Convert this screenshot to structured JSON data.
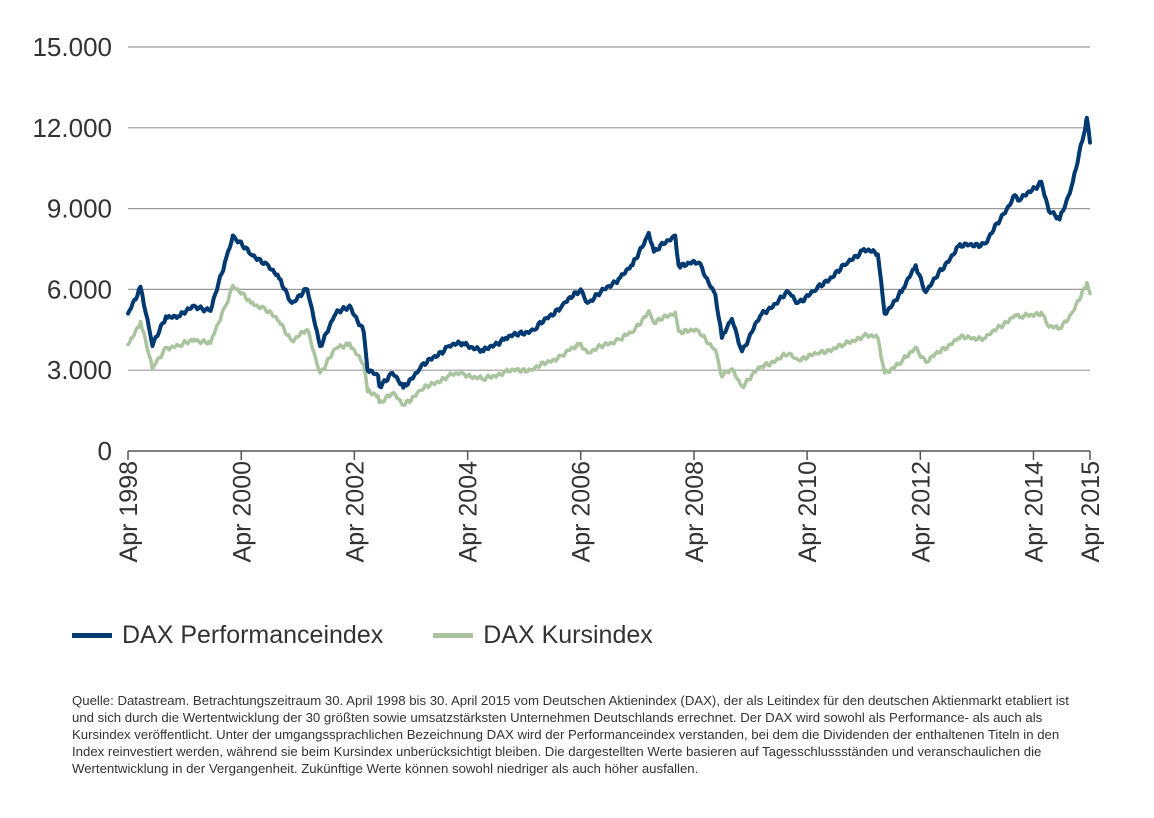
{
  "chart_data": {
    "type": "line",
    "title": "",
    "xlabel": "",
    "ylabel": "",
    "ylim": [
      0,
      15000
    ],
    "yticks": [
      0,
      3000,
      6000,
      9000,
      12000,
      15000
    ],
    "ytick_labels": [
      "0",
      "3.000",
      "6.000",
      "9.000",
      "12.000",
      "15.000"
    ],
    "xticks": [
      "1998-04-30",
      "2000-04-30",
      "2002-04-30",
      "2004-04-30",
      "2006-04-30",
      "2008-04-30",
      "2010-04-30",
      "2012-04-30",
      "2014-04-30",
      "2015-04-30"
    ],
    "xtick_labels": [
      "Apr 1998",
      "Apr 2000",
      "Apr 2002",
      "Apr 2004",
      "Apr 2006",
      "Apr 2008",
      "Apr 2010",
      "Apr 2012",
      "Apr 2014",
      "Apr 2015"
    ],
    "xlim": [
      "1998-04-30",
      "2015-04-30"
    ],
    "grid": true,
    "legend_position": "bottom-left",
    "series": [
      {
        "name": "DAX Performanceindex",
        "color": "#003a70",
        "points": [
          [
            "1998-04-30",
            5100
          ],
          [
            "1998-07-20",
            6100
          ],
          [
            "1998-10-05",
            3900
          ],
          [
            "1998-12-31",
            5000
          ],
          [
            "1999-03-31",
            5000
          ],
          [
            "1999-06-30",
            5400
          ],
          [
            "1999-10-15",
            5200
          ],
          [
            "2000-01-15",
            7000
          ],
          [
            "2000-03-07",
            8000
          ],
          [
            "2000-06-30",
            7300
          ],
          [
            "2000-09-30",
            7000
          ],
          [
            "2000-12-31",
            6400
          ],
          [
            "2001-03-22",
            5500
          ],
          [
            "2001-06-30",
            6000
          ],
          [
            "2001-09-21",
            3900
          ],
          [
            "2001-12-31",
            5100
          ],
          [
            "2002-03-31",
            5400
          ],
          [
            "2002-06-30",
            4400
          ],
          [
            "2002-07-24",
            3000
          ],
          [
            "2002-09-30",
            2800
          ],
          [
            "2002-10-09",
            2400
          ],
          [
            "2002-12-31",
            2900
          ],
          [
            "2003-03-12",
            2350
          ],
          [
            "2003-06-30",
            3100
          ],
          [
            "2003-12-31",
            3900
          ],
          [
            "2004-03-31",
            4000
          ],
          [
            "2004-08-10",
            3700
          ],
          [
            "2004-12-31",
            4200
          ],
          [
            "2005-06-30",
            4500
          ],
          [
            "2005-12-31",
            5400
          ],
          [
            "2006-04-30",
            6000
          ],
          [
            "2006-06-13",
            5500
          ],
          [
            "2006-12-31",
            6400
          ],
          [
            "2007-03-31",
            6900
          ],
          [
            "2007-07-13",
            8100
          ],
          [
            "2007-08-16",
            7400
          ],
          [
            "2007-12-31",
            8000
          ],
          [
            "2008-01-22",
            6900
          ],
          [
            "2008-05-31",
            7000
          ],
          [
            "2008-09-15",
            5800
          ],
          [
            "2008-10-27",
            4200
          ],
          [
            "2008-12-31",
            4900
          ],
          [
            "2009-03-06",
            3700
          ],
          [
            "2009-06-30",
            5000
          ],
          [
            "2009-12-31",
            5900
          ],
          [
            "2010-02-28",
            5500
          ],
          [
            "2010-06-30",
            6000
          ],
          [
            "2010-12-31",
            6900
          ],
          [
            "2011-05-02",
            7500
          ],
          [
            "2011-07-31",
            7300
          ],
          [
            "2011-09-12",
            5100
          ],
          [
            "2011-12-31",
            5900
          ],
          [
            "2012-03-31",
            6900
          ],
          [
            "2012-06-04",
            5900
          ],
          [
            "2012-12-31",
            7600
          ],
          [
            "2013-06-24",
            7700
          ],
          [
            "2013-12-31",
            9500
          ],
          [
            "2014-01-31",
            9300
          ],
          [
            "2014-06-20",
            10000
          ],
          [
            "2014-08-08",
            8900
          ],
          [
            "2014-10-16",
            8600
          ],
          [
            "2014-12-31",
            9800
          ],
          [
            "2015-03-31",
            12000
          ],
          [
            "2015-04-10",
            12370
          ],
          [
            "2015-04-30",
            11450
          ]
        ]
      },
      {
        "name": "DAX Kursindex",
        "color": "#a9c49e",
        "points": [
          [
            "1998-04-30",
            3950
          ],
          [
            "1998-07-20",
            4800
          ],
          [
            "1998-10-05",
            3050
          ],
          [
            "1998-12-31",
            3850
          ],
          [
            "1999-03-31",
            3900
          ],
          [
            "1999-06-30",
            4150
          ],
          [
            "1999-10-15",
            4000
          ],
          [
            "2000-01-15",
            5350
          ],
          [
            "2000-03-07",
            6150
          ],
          [
            "2000-06-30",
            5500
          ],
          [
            "2000-09-30",
            5300
          ],
          [
            "2000-12-31",
            4800
          ],
          [
            "2001-03-22",
            4100
          ],
          [
            "2001-06-30",
            4500
          ],
          [
            "2001-09-21",
            2900
          ],
          [
            "2001-12-31",
            3800
          ],
          [
            "2002-03-31",
            4000
          ],
          [
            "2002-06-30",
            3200
          ],
          [
            "2002-07-24",
            2200
          ],
          [
            "2002-09-30",
            2050
          ],
          [
            "2002-10-09",
            1800
          ],
          [
            "2002-12-31",
            2150
          ],
          [
            "2003-03-12",
            1700
          ],
          [
            "2003-06-30",
            2250
          ],
          [
            "2003-12-31",
            2800
          ],
          [
            "2004-03-31",
            2880
          ],
          [
            "2004-08-10",
            2650
          ],
          [
            "2004-12-31",
            2950
          ],
          [
            "2005-06-30",
            3050
          ],
          [
            "2005-12-31",
            3550
          ],
          [
            "2006-04-30",
            4000
          ],
          [
            "2006-06-13",
            3650
          ],
          [
            "2006-12-31",
            4150
          ],
          [
            "2007-03-31",
            4400
          ],
          [
            "2007-07-13",
            5200
          ],
          [
            "2007-08-16",
            4750
          ],
          [
            "2007-12-31",
            5150
          ],
          [
            "2008-01-22",
            4450
          ],
          [
            "2008-05-31",
            4450
          ],
          [
            "2008-09-15",
            3750
          ],
          [
            "2008-10-27",
            2750
          ],
          [
            "2008-12-31",
            3050
          ],
          [
            "2009-03-06",
            2400
          ],
          [
            "2009-06-30",
            3100
          ],
          [
            "2009-12-31",
            3600
          ],
          [
            "2010-02-28",
            3400
          ],
          [
            "2010-06-30",
            3600
          ],
          [
            "2010-12-31",
            3950
          ],
          [
            "2011-05-02",
            4300
          ],
          [
            "2011-07-31",
            4200
          ],
          [
            "2011-09-12",
            2900
          ],
          [
            "2011-12-31",
            3300
          ],
          [
            "2012-03-31",
            3850
          ],
          [
            "2012-06-04",
            3300
          ],
          [
            "2012-12-31",
            4200
          ],
          [
            "2013-06-24",
            4200
          ],
          [
            "2013-12-31",
            5050
          ],
          [
            "2014-01-31",
            4950
          ],
          [
            "2014-06-20",
            5150
          ],
          [
            "2014-08-08",
            4600
          ],
          [
            "2014-10-16",
            4550
          ],
          [
            "2014-12-31",
            5100
          ],
          [
            "2015-03-31",
            6050
          ],
          [
            "2015-04-10",
            6250
          ],
          [
            "2015-04-30",
            5850
          ]
        ]
      }
    ]
  },
  "legend": [
    {
      "label": "DAX Performanceindex",
      "color": "#003a70"
    },
    {
      "label": "DAX Kursindex",
      "color": "#a9c49e"
    }
  ],
  "source_note": "Quelle: Datastream. Betrachtungszeitraum 30. April 1998 bis 30. April 2015 vom Deutschen Aktienindex (DAX), der als Leitindex für den deutschen Aktienmarkt etabliert ist und sich durch die Wertentwicklung der 30 größten sowie umsatzstärksten Unternehmen Deutschlands errechnet. Der DAX wird sowohl als Performance- als auch als Kursindex veröffentlicht. Unter der umgangssprachlichen Bezeichnung DAX wird der Performanceindex verstanden, bei dem die Dividenden der enthaltenen Titeln in den Index reinvestiert werden, während sie beim Kursindex unberücksichtigt bleiben. Die dargestellten Werte basieren auf Tagesschlussständen und veranschaulichen die Wertentwicklung in der Vergangenheit. Zukünftige Werte können sowohl niedriger als auch höher ausfallen."
}
